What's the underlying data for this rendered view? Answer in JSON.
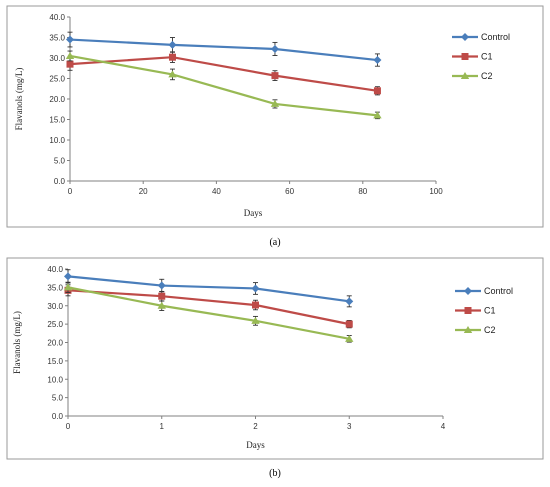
{
  "colors": {
    "Control": "#4a7ebb",
    "C1": "#be4b48",
    "C2": "#98b954"
  },
  "chart_data": [
    {
      "type": "line",
      "caption": "(a)",
      "xlabel": "Days",
      "ylabel": "Flavanols (mg/L)",
      "xlim": [
        0,
        100
      ],
      "ylim": [
        0,
        40
      ],
      "xticks": [
        0,
        20,
        40,
        60,
        80,
        100
      ],
      "yticks": [
        0,
        5,
        10,
        15,
        20,
        25,
        30,
        35,
        40
      ],
      "x_tick_labels": [
        "0",
        "20",
        "40",
        "60",
        "80",
        "100"
      ],
      "y_tick_labels": [
        "0.0",
        "5.0",
        "10.0",
        "15.0",
        "20.0",
        "25.0",
        "30.0",
        "35.0",
        "40.0"
      ],
      "x": [
        0,
        28,
        56,
        84
      ],
      "legend_position": "top-right",
      "grid": false,
      "series": [
        {
          "name": "Control",
          "marker": "diamond",
          "values": [
            34.5,
            33.2,
            32.2,
            29.5
          ],
          "errors": [
            1.8,
            1.8,
            1.6,
            1.5
          ]
        },
        {
          "name": "C1",
          "marker": "square",
          "values": [
            28.5,
            30.2,
            25.7,
            22.0
          ],
          "errors": [
            1.5,
            1.3,
            1.2,
            1.0
          ]
        },
        {
          "name": "C2",
          "marker": "triangle",
          "values": [
            30.5,
            26.0,
            18.8,
            16.0
          ],
          "errors": [
            1.2,
            1.3,
            1.0,
            0.8
          ]
        }
      ]
    },
    {
      "type": "line",
      "caption": "(b)",
      "xlabel": "Days",
      "ylabel": "Flavanols (mg/L)",
      "xlim": [
        0,
        4
      ],
      "ylim": [
        0,
        40
      ],
      "xticks": [
        0,
        1,
        2,
        3,
        4
      ],
      "yticks": [
        0,
        5,
        10,
        15,
        20,
        25,
        30,
        35,
        40
      ],
      "x_tick_labels": [
        "0",
        "1",
        "2",
        "3",
        "4"
      ],
      "y_tick_labels": [
        "0.0",
        "5.0",
        "10.0",
        "15.0",
        "20.0",
        "25.0",
        "30.0",
        "35.0",
        "40.0"
      ],
      "x": [
        0,
        1,
        2,
        3
      ],
      "legend_position": "top-right",
      "grid": false,
      "series": [
        {
          "name": "Control",
          "marker": "diamond",
          "values": [
            38.0,
            35.5,
            34.7,
            31.2
          ],
          "errors": [
            1.8,
            1.7,
            1.6,
            1.5
          ]
        },
        {
          "name": "C1",
          "marker": "square",
          "values": [
            34.2,
            32.6,
            30.2,
            25.0
          ],
          "errors": [
            1.5,
            1.3,
            1.3,
            1.0
          ]
        },
        {
          "name": "C2",
          "marker": "triangle",
          "values": [
            35.0,
            30.0,
            25.9,
            21.0
          ],
          "errors": [
            1.4,
            1.3,
            1.2,
            0.9
          ]
        }
      ]
    }
  ]
}
